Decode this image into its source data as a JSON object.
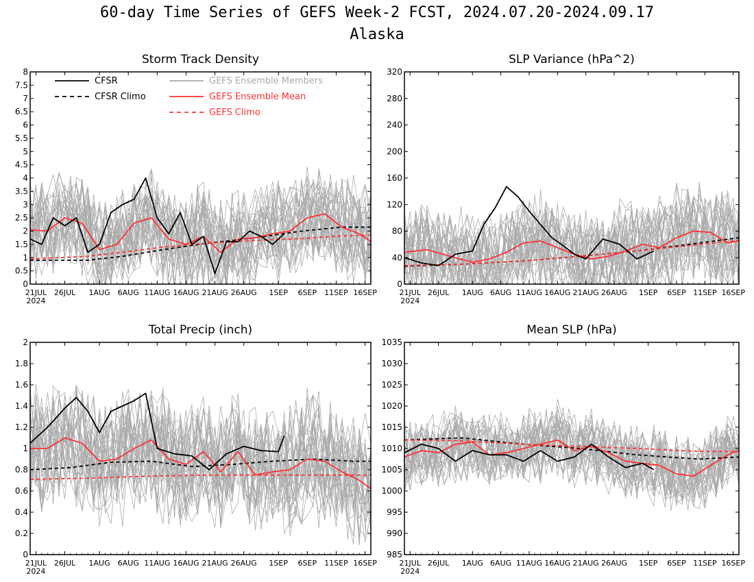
{
  "figure": {
    "title": "60-day Time Series of GEFS Week-2 FCST, 2024.07.20-2024.09.17",
    "subtitle": "Alaska"
  },
  "colors": {
    "cfsr": "#000000",
    "members": "#aaaaaa",
    "ens_mean": "#ff3030",
    "gefs_climo": "#ff3030"
  },
  "legend": {
    "cfsr": "CFSR",
    "cfsr_climo": "CFSR Climo",
    "members": "GEFS Ensemble Members",
    "ens_mean": "GEFS Ensemble Mean",
    "gefs_climo": "GEFS Climo"
  },
  "chart_data": [
    {
      "type": "line",
      "title": "Storm Track Density",
      "x_tick_labels": [
        "21JUL",
        "26JUL",
        "1AUG",
        "6AUG",
        "11AUG",
        "16AUG",
        "21AUG",
        "26AUG",
        "1SEP",
        "6SEP",
        "11SEP",
        "16SEP"
      ],
      "x_year_label": "2024",
      "x_ticks": [
        "2024-07-21",
        "2024-07-26",
        "2024-08-01",
        "2024-08-06",
        "2024-08-11",
        "2024-08-16",
        "2024-08-21",
        "2024-08-26",
        "2024-09-01",
        "2024-09-06",
        "2024-09-11",
        "2024-09-16"
      ],
      "xlim": [
        "2024-07-20",
        "2024-09-17"
      ],
      "ylim": [
        0,
        8
      ],
      "y_ticks": [
        "0",
        "0.5",
        "1",
        "1.5",
        "2",
        "2.5",
        "3",
        "3.5",
        "4",
        "4.5",
        "5",
        "5.5",
        "6",
        "6.5",
        "7",
        "7.5",
        "8"
      ],
      "legend_position": "top-left",
      "series": [
        {
          "name": "CFSR",
          "style": "solid",
          "color": "#000000",
          "x": [
            "2024-07-20",
            "2024-07-22",
            "2024-07-24",
            "2024-07-26",
            "2024-07-28",
            "2024-07-30",
            "2024-08-01",
            "2024-08-03",
            "2024-08-05",
            "2024-08-07",
            "2024-08-09",
            "2024-08-11",
            "2024-08-13",
            "2024-08-15",
            "2024-08-17",
            "2024-08-19",
            "2024-08-21",
            "2024-08-23",
            "2024-08-25",
            "2024-08-27",
            "2024-08-29",
            "2024-08-31",
            "2024-09-02"
          ],
          "values": [
            1.7,
            1.5,
            2.5,
            2.2,
            2.5,
            1.2,
            1.5,
            2.7,
            3.0,
            3.2,
            4.0,
            2.5,
            1.9,
            2.7,
            1.5,
            1.8,
            0.4,
            1.6,
            1.6,
            2.0,
            1.8,
            1.5,
            1.9
          ]
        },
        {
          "name": "CFSR Climo",
          "style": "dashed",
          "color": "#000000",
          "x": [
            "2024-07-20",
            "2024-07-30",
            "2024-08-05",
            "2024-08-12",
            "2024-08-20",
            "2024-08-28",
            "2024-09-05",
            "2024-09-12",
            "2024-09-17"
          ],
          "values": [
            0.9,
            0.9,
            1.05,
            1.3,
            1.55,
            1.75,
            2.0,
            2.15,
            2.15
          ]
        },
        {
          "name": "GEFS Ensemble Mean",
          "style": "solid",
          "color": "#ff3030",
          "x": [
            "2024-07-20",
            "2024-07-23",
            "2024-07-26",
            "2024-07-29",
            "2024-08-01",
            "2024-08-04",
            "2024-08-07",
            "2024-08-10",
            "2024-08-13",
            "2024-08-16",
            "2024-08-19",
            "2024-08-22",
            "2024-08-25",
            "2024-08-28",
            "2024-08-31",
            "2024-09-03",
            "2024-09-06",
            "2024-09-09",
            "2024-09-12",
            "2024-09-15",
            "2024-09-17"
          ],
          "values": [
            2.05,
            2.0,
            2.5,
            2.3,
            1.3,
            1.5,
            2.3,
            2.5,
            1.7,
            1.5,
            1.8,
            1.2,
            1.7,
            1.75,
            1.9,
            2.0,
            2.5,
            2.65,
            2.15,
            1.9,
            1.6
          ]
        },
        {
          "name": "GEFS Climo",
          "style": "dashed",
          "color": "#ff3030",
          "x": [
            "2024-07-20",
            "2024-07-30",
            "2024-08-05",
            "2024-08-12",
            "2024-08-20",
            "2024-08-28",
            "2024-09-05",
            "2024-09-12",
            "2024-09-17"
          ],
          "values": [
            0.95,
            1.05,
            1.2,
            1.4,
            1.55,
            1.65,
            1.72,
            1.82,
            1.85
          ]
        }
      ],
      "ensemble_members": {
        "name": "GEFS Ensemble Members",
        "count": 30,
        "typical_range": [
          0.1,
          5.0
        ]
      }
    },
    {
      "type": "line",
      "title": "SLP Variance (hPa^2)",
      "x_tick_labels": [
        "21JUL",
        "26JUL",
        "1AUG",
        "6AUG",
        "11AUG",
        "16AUG",
        "21AUG",
        "26AUG",
        "1SEP",
        "6SEP",
        "11SEP",
        "16SEP"
      ],
      "x_year_label": "2024",
      "x_ticks": [
        "2024-07-21",
        "2024-07-26",
        "2024-08-01",
        "2024-08-06",
        "2024-08-11",
        "2024-08-16",
        "2024-08-21",
        "2024-08-26",
        "2024-09-01",
        "2024-09-06",
        "2024-09-11",
        "2024-09-16"
      ],
      "xlim": [
        "2024-07-20",
        "2024-09-17"
      ],
      "ylim": [
        0,
        320
      ],
      "y_ticks": [
        "0",
        "40",
        "80",
        "120",
        "160",
        "200",
        "240",
        "280",
        "320"
      ],
      "series": [
        {
          "name": "CFSR",
          "style": "solid",
          "color": "#000000",
          "x": [
            "2024-07-20",
            "2024-07-23",
            "2024-07-26",
            "2024-07-29",
            "2024-08-01",
            "2024-08-03",
            "2024-08-05",
            "2024-08-07",
            "2024-08-09",
            "2024-08-11",
            "2024-08-13",
            "2024-08-15",
            "2024-08-17",
            "2024-08-19",
            "2024-08-21",
            "2024-08-24",
            "2024-08-27",
            "2024-08-30",
            "2024-09-02"
          ],
          "values": [
            40,
            32,
            28,
            45,
            50,
            90,
            115,
            147,
            132,
            110,
            90,
            70,
            58,
            45,
            38,
            68,
            60,
            38,
            50
          ]
        },
        {
          "name": "CFSR Climo",
          "style": "dashed",
          "color": "#000000",
          "x": [
            "2024-07-20",
            "2024-07-30",
            "2024-08-10",
            "2024-08-20",
            "2024-08-30",
            "2024-09-10",
            "2024-09-17"
          ],
          "values": [
            27,
            30,
            35,
            42,
            50,
            62,
            70
          ]
        },
        {
          "name": "GEFS Ensemble Mean",
          "style": "solid",
          "color": "#ff3030",
          "x": [
            "2024-07-20",
            "2024-07-24",
            "2024-07-28",
            "2024-08-01",
            "2024-08-04",
            "2024-08-07",
            "2024-08-10",
            "2024-08-13",
            "2024-08-16",
            "2024-08-19",
            "2024-08-22",
            "2024-08-25",
            "2024-08-28",
            "2024-08-31",
            "2024-09-03",
            "2024-09-06",
            "2024-09-09",
            "2024-09-12",
            "2024-09-15",
            "2024-09-17"
          ],
          "values": [
            48,
            52,
            42,
            33,
            38,
            48,
            62,
            65,
            55,
            45,
            38,
            42,
            50,
            60,
            55,
            70,
            80,
            78,
            62,
            65
          ]
        },
        {
          "name": "GEFS Climo",
          "style": "dashed",
          "color": "#ff3030",
          "x": [
            "2024-07-20",
            "2024-07-30",
            "2024-08-10",
            "2024-08-20",
            "2024-08-30",
            "2024-09-10",
            "2024-09-17"
          ],
          "values": [
            28,
            30,
            35,
            42,
            50,
            60,
            66
          ]
        }
      ],
      "ensemble_members": {
        "name": "GEFS Ensemble Members",
        "count": 30,
        "typical_range": [
          10,
          200
        ]
      }
    },
    {
      "type": "line",
      "title": "Total Precip (inch)",
      "x_tick_labels": [
        "21JUL",
        "26JUL",
        "1AUG",
        "6AUG",
        "11AUG",
        "16AUG",
        "21AUG",
        "26AUG",
        "1SEP",
        "6SEP",
        "11SEP",
        "16SEP"
      ],
      "x_year_label": "2024",
      "x_ticks": [
        "2024-07-21",
        "2024-07-26",
        "2024-08-01",
        "2024-08-06",
        "2024-08-11",
        "2024-08-16",
        "2024-08-21",
        "2024-08-26",
        "2024-09-01",
        "2024-09-06",
        "2024-09-11",
        "2024-09-16"
      ],
      "xlim": [
        "2024-07-20",
        "2024-09-17"
      ],
      "ylim": [
        0,
        2
      ],
      "y_ticks": [
        "0",
        "0.2",
        "0.4",
        "0.6",
        "0.8",
        "1",
        "1.2",
        "1.4",
        "1.6",
        "1.8",
        "2"
      ],
      "series": [
        {
          "name": "CFSR",
          "style": "solid",
          "color": "#000000",
          "x": [
            "2024-07-20",
            "2024-07-23",
            "2024-07-26",
            "2024-07-28",
            "2024-07-30",
            "2024-08-01",
            "2024-08-03",
            "2024-08-05",
            "2024-08-07",
            "2024-08-09",
            "2024-08-11",
            "2024-08-14",
            "2024-08-17",
            "2024-08-20",
            "2024-08-23",
            "2024-08-26",
            "2024-08-29",
            "2024-09-01",
            "2024-09-02"
          ],
          "values": [
            1.05,
            1.2,
            1.38,
            1.48,
            1.35,
            1.15,
            1.35,
            1.4,
            1.45,
            1.52,
            1.0,
            0.95,
            0.93,
            0.8,
            0.95,
            1.02,
            0.98,
            0.97,
            1.12
          ]
        },
        {
          "name": "CFSR Climo",
          "style": "dashed",
          "color": "#000000",
          "x": [
            "2024-07-20",
            "2024-07-27",
            "2024-08-03",
            "2024-08-10",
            "2024-08-17",
            "2024-08-24",
            "2024-08-31",
            "2024-09-07",
            "2024-09-14",
            "2024-09-17"
          ],
          "values": [
            0.8,
            0.82,
            0.87,
            0.88,
            0.83,
            0.85,
            0.88,
            0.9,
            0.88,
            0.88
          ]
        },
        {
          "name": "GEFS Ensemble Mean",
          "style": "solid",
          "color": "#ff3030",
          "x": [
            "2024-07-20",
            "2024-07-23",
            "2024-07-26",
            "2024-07-29",
            "2024-08-01",
            "2024-08-04",
            "2024-08-07",
            "2024-08-10",
            "2024-08-13",
            "2024-08-16",
            "2024-08-19",
            "2024-08-22",
            "2024-08-25",
            "2024-08-28",
            "2024-08-31",
            "2024-09-03",
            "2024-09-06",
            "2024-09-09",
            "2024-09-12",
            "2024-09-15",
            "2024-09-17"
          ],
          "values": [
            1.0,
            1.0,
            1.1,
            1.05,
            0.88,
            0.9,
            1.0,
            1.08,
            0.9,
            0.85,
            0.97,
            0.78,
            0.97,
            0.75,
            0.78,
            0.8,
            0.9,
            0.88,
            0.78,
            0.7,
            0.62
          ]
        },
        {
          "name": "GEFS Climo",
          "style": "dashed",
          "color": "#ff3030",
          "x": [
            "2024-07-20",
            "2024-07-30",
            "2024-08-10",
            "2024-08-20",
            "2024-08-30",
            "2024-09-10",
            "2024-09-17"
          ],
          "values": [
            0.71,
            0.72,
            0.74,
            0.75,
            0.75,
            0.75,
            0.75
          ]
        }
      ],
      "ensemble_members": {
        "name": "GEFS Ensemble Members",
        "count": 30,
        "typical_range": [
          0.3,
          1.8
        ]
      }
    },
    {
      "type": "line",
      "title": "Mean SLP (hPa)",
      "x_tick_labels": [
        "21JUL",
        "26JUL",
        "1AUG",
        "6AUG",
        "11AUG",
        "16AUG",
        "21AUG",
        "26AUG",
        "1SEP",
        "6SEP",
        "11SEP",
        "16SEP"
      ],
      "x_year_label": "2024",
      "x_ticks": [
        "2024-07-21",
        "2024-07-26",
        "2024-08-01",
        "2024-08-06",
        "2024-08-11",
        "2024-08-16",
        "2024-08-21",
        "2024-08-26",
        "2024-09-01",
        "2024-09-06",
        "2024-09-11",
        "2024-09-16"
      ],
      "xlim": [
        "2024-07-20",
        "2024-09-17"
      ],
      "ylim": [
        985,
        1035
      ],
      "y_ticks": [
        "985",
        "990",
        "995",
        "1000",
        "1005",
        "1010",
        "1015",
        "1020",
        "1025",
        "1030",
        "1035"
      ],
      "series": [
        {
          "name": "CFSR",
          "style": "solid",
          "color": "#000000",
          "x": [
            "2024-07-20",
            "2024-07-23",
            "2024-07-26",
            "2024-07-29",
            "2024-08-01",
            "2024-08-04",
            "2024-08-07",
            "2024-08-10",
            "2024-08-13",
            "2024-08-16",
            "2024-08-19",
            "2024-08-22",
            "2024-08-25",
            "2024-08-28",
            "2024-08-31",
            "2024-09-02"
          ],
          "values": [
            1009,
            1011,
            1010,
            1007,
            1009.5,
            1008.5,
            1008.5,
            1007,
            1009.5,
            1007,
            1008,
            1011,
            1008,
            1005.5,
            1006.5,
            1005
          ]
        },
        {
          "name": "CFSR Climo",
          "style": "dashed",
          "color": "#000000",
          "x": [
            "2024-07-20",
            "2024-07-30",
            "2024-08-10",
            "2024-08-20",
            "2024-08-30",
            "2024-09-10",
            "2024-09-17"
          ],
          "values": [
            1012,
            1012.5,
            1011,
            1010,
            1008.5,
            1007.5,
            1008
          ]
        },
        {
          "name": "GEFS Ensemble Mean",
          "style": "solid",
          "color": "#ff3030",
          "x": [
            "2024-07-20",
            "2024-07-23",
            "2024-07-26",
            "2024-07-29",
            "2024-08-01",
            "2024-08-04",
            "2024-08-07",
            "2024-08-10",
            "2024-08-13",
            "2024-08-16",
            "2024-08-19",
            "2024-08-22",
            "2024-08-25",
            "2024-08-28",
            "2024-08-31",
            "2024-09-03",
            "2024-09-06",
            "2024-09-09",
            "2024-09-12",
            "2024-09-15",
            "2024-09-17"
          ],
          "values": [
            1008,
            1009.5,
            1009,
            1011,
            1011.5,
            1008.5,
            1009,
            1010,
            1011,
            1012,
            1009.5,
            1010.5,
            1009,
            1007,
            1006.5,
            1006,
            1004,
            1003.5,
            1006,
            1008.5,
            1009.5
          ]
        },
        {
          "name": "GEFS Climo",
          "style": "dashed",
          "color": "#ff3030",
          "x": [
            "2024-07-20",
            "2024-07-30",
            "2024-08-10",
            "2024-08-20",
            "2024-08-30",
            "2024-09-10",
            "2024-09-17"
          ],
          "values": [
            1012,
            1011.8,
            1011,
            1010.5,
            1010,
            1009.3,
            1009.3
          ]
        }
      ],
      "ensemble_members": {
        "name": "GEFS Ensemble Members",
        "count": 30,
        "typical_range": [
          998,
          1020
        ]
      }
    }
  ]
}
